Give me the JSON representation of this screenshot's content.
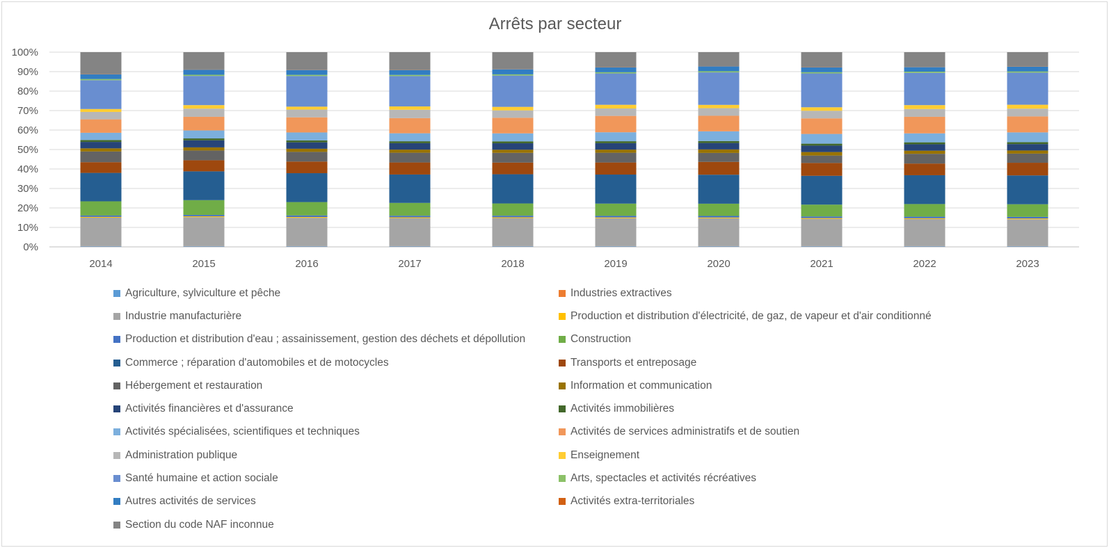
{
  "chart_data": {
    "type": "bar",
    "stacked": "percent",
    "title": "Arrêts par secteur",
    "xlabel": "",
    "ylabel": "",
    "ylim": [
      0,
      100
    ],
    "yticks": [
      "0%",
      "10%",
      "20%",
      "30%",
      "40%",
      "50%",
      "60%",
      "70%",
      "80%",
      "90%",
      "100%"
    ],
    "grid": true,
    "legend_position": "bottom",
    "categories": [
      "2014",
      "2015",
      "2016",
      "2017",
      "2018",
      "2019",
      "2020",
      "2021",
      "2022",
      "2023"
    ],
    "series": [
      {
        "name": "Agriculture, sylviculture et pêche",
        "color": "#5b9bd5",
        "values": [
          0.3,
          0.3,
          0.3,
          0.3,
          0.3,
          0.3,
          0.3,
          0.3,
          0.3,
          0.3
        ]
      },
      {
        "name": "Industries extractives",
        "color": "#ed7d31",
        "values": [
          0.1,
          0.1,
          0.1,
          0.1,
          0.1,
          0.1,
          0.1,
          0.1,
          0.1,
          0.1
        ]
      },
      {
        "name": "Industrie manufacturière",
        "color": "#a5a5a5",
        "values": [
          14.6,
          14.9,
          14.6,
          14.4,
          14.4,
          14.3,
          14.3,
          14.0,
          13.9,
          13.8
        ]
      },
      {
        "name": "Production et distribution d'électricité, de gaz, de vapeur et d'air conditionné",
        "color": "#ffc000",
        "values": [
          0.4,
          0.4,
          0.4,
          0.4,
          0.4,
          0.4,
          0.4,
          0.4,
          0.4,
          0.4
        ]
      },
      {
        "name": "Production et distribution d'eau ; assainissement, gestion des déchets et dépollution",
        "color": "#4472c4",
        "values": [
          0.7,
          0.7,
          0.8,
          0.8,
          0.8,
          0.8,
          0.8,
          0.8,
          0.8,
          0.8
        ]
      },
      {
        "name": "Construction",
        "color": "#70ad47",
        "values": [
          7.3,
          7.6,
          6.9,
          6.6,
          6.3,
          6.3,
          6.3,
          6.1,
          6.5,
          6.5
        ]
      },
      {
        "name": "Commerce ; réparation d'automobiles et de motocycles",
        "color": "#255e91",
        "values": [
          14.6,
          14.8,
          14.9,
          14.6,
          15.0,
          14.9,
          14.9,
          14.8,
          14.8,
          14.8
        ]
      },
      {
        "name": "Transports et entreposage",
        "color": "#9e480e",
        "values": [
          5.5,
          5.7,
          6.0,
          6.2,
          6.0,
          6.2,
          6.6,
          6.6,
          6.0,
          6.5
        ]
      },
      {
        "name": "Hébergement et restauration",
        "color": "#636363",
        "values": [
          5.5,
          5.0,
          5.0,
          5.0,
          5.0,
          5.0,
          4.6,
          3.8,
          5.0,
          4.7
        ]
      },
      {
        "name": "Information et communication",
        "color": "#997300",
        "values": [
          1.6,
          1.6,
          1.6,
          1.6,
          1.6,
          1.6,
          1.8,
          1.8,
          1.6,
          1.6
        ]
      },
      {
        "name": "Activités financières et d'assurance",
        "color": "#264478",
        "values": [
          3.3,
          3.6,
          3.3,
          3.3,
          3.3,
          3.3,
          3.3,
          3.3,
          3.3,
          3.3
        ]
      },
      {
        "name": "Activités immobilières",
        "color": "#43682b",
        "values": [
          1.0,
          1.0,
          1.0,
          1.0,
          1.0,
          1.0,
          1.0,
          1.0,
          1.0,
          1.0
        ]
      },
      {
        "name": "Activités spécialisées, scientifiques et techniques",
        "color": "#7cafdd",
        "values": [
          3.7,
          4.1,
          4.1,
          4.1,
          4.1,
          4.6,
          5.0,
          5.0,
          4.6,
          5.0
        ]
      },
      {
        "name": "Activités de services administratifs et de soutien",
        "color": "#f1975a",
        "values": [
          6.9,
          7.0,
          7.8,
          7.8,
          8.0,
          8.4,
          8.0,
          8.0,
          8.5,
          8.2
        ]
      },
      {
        "name": "Administration publique",
        "color": "#b7b7b7",
        "values": [
          3.8,
          4.2,
          4.0,
          4.3,
          3.8,
          3.8,
          3.9,
          3.9,
          4.0,
          4.0
        ]
      },
      {
        "name": "Enseignement",
        "color": "#ffcd33",
        "values": [
          1.5,
          1.8,
          1.5,
          1.7,
          1.8,
          1.9,
          1.7,
          1.8,
          2.0,
          2.0
        ]
      },
      {
        "name": "Santé humaine et action sociale",
        "color": "#698ed0",
        "values": [
          14.8,
          15.0,
          15.8,
          15.6,
          16.1,
          16.1,
          16.7,
          17.4,
          16.6,
          16.5
        ]
      },
      {
        "name": "Arts, spectacles et activités récréatives",
        "color": "#8cc168",
        "values": [
          0.6,
          0.6,
          0.6,
          0.6,
          0.6,
          0.6,
          0.6,
          0.6,
          0.6,
          0.6
        ]
      },
      {
        "name": "Autres activités de services",
        "color": "#327dc2",
        "values": [
          2.4,
          2.6,
          2.5,
          2.5,
          2.6,
          2.5,
          2.5,
          2.5,
          2.3,
          2.4
        ]
      },
      {
        "name": "Activités extra-territoriales",
        "color": "#d26012",
        "values": [
          0.1,
          0.1,
          0.1,
          0.1,
          0.1,
          0.1,
          0.1,
          0.1,
          0.1,
          0.1
        ]
      },
      {
        "name": "Section du code NAF inconnue",
        "color": "#848484",
        "values": [
          11.3,
          8.9,
          9.1,
          9.1,
          8.7,
          7.7,
          7.2,
          7.7,
          7.6,
          7.4
        ]
      }
    ]
  }
}
